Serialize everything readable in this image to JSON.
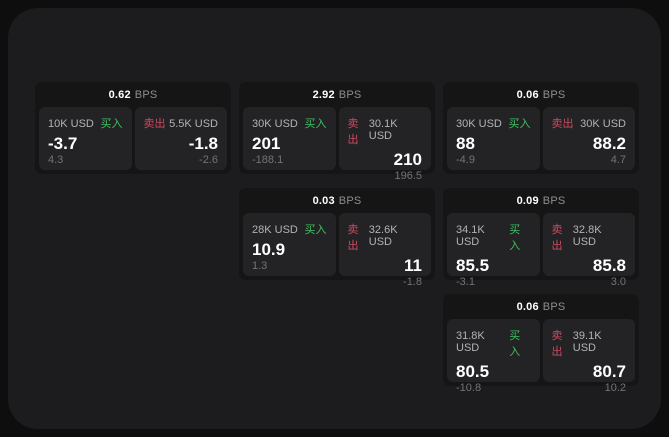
{
  "theme": {
    "outer_bg": "#0e0e0f",
    "screen_bg": "#1c1c1e",
    "card_bg": "#151516",
    "panel_bg": "#232325",
    "buy_color": "#3fbf63",
    "sell_color": "#cc4a5e"
  },
  "labels": {
    "bps_unit": "BPS",
    "buy": "买入",
    "sell": "卖出"
  },
  "cards": [
    {
      "bps": "0.62",
      "row": 1,
      "col": 1,
      "buy": {
        "amount": "10K USD",
        "price": "-3.7",
        "sub": "4.3"
      },
      "sell": {
        "amount": "5.5K USD",
        "price": "-1.8",
        "sub": "-2.6"
      }
    },
    {
      "bps": "2.92",
      "row": 1,
      "col": 2,
      "buy": {
        "amount": "30K USD",
        "price": "201",
        "sub": "-188.1"
      },
      "sell": {
        "amount": "30.1K USD",
        "price": "210",
        "sub": "196.5"
      }
    },
    {
      "bps": "0.06",
      "row": 1,
      "col": 3,
      "buy": {
        "amount": "30K USD",
        "price": "88",
        "sub": "-4.9"
      },
      "sell": {
        "amount": "30K USD",
        "price": "88.2",
        "sub": "4.7"
      }
    },
    {
      "bps": "0.03",
      "row": 2,
      "col": 2,
      "buy": {
        "amount": "28K USD",
        "price": "10.9",
        "sub": "1.3"
      },
      "sell": {
        "amount": "32.6K USD",
        "price": "11",
        "sub": "-1.8"
      }
    },
    {
      "bps": "0.09",
      "row": 2,
      "col": 3,
      "buy": {
        "amount": "34.1K USD",
        "price": "85.5",
        "sub": "-3.1"
      },
      "sell": {
        "amount": "32.8K USD",
        "price": "85.8",
        "sub": "3.0"
      }
    },
    {
      "bps": "0.06",
      "row": 3,
      "col": 3,
      "buy": {
        "amount": "31.8K USD",
        "price": "80.5",
        "sub": "-10.8"
      },
      "sell": {
        "amount": "39.1K USD",
        "price": "80.7",
        "sub": "10.2"
      }
    }
  ]
}
